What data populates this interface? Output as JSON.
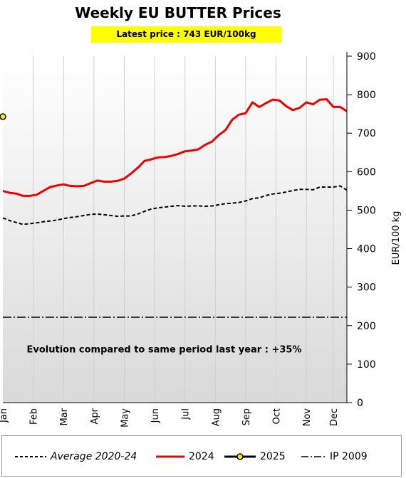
{
  "header": {
    "title": "Weekly EU BUTTER Prices",
    "latest_price": "Latest price : 743 EUR/100kg"
  },
  "annotation": "Evolution compared to same period last year : +35%",
  "colors": {
    "average": "#000000",
    "y2024": "#ee0000",
    "y2025_line": "#000000",
    "y2025_marker": "#ffee00",
    "ip": "#000000",
    "highlight": "#ffff00"
  },
  "chart_data": {
    "type": "line",
    "title": "Weekly EU BUTTER Prices",
    "ylabel": "EUR/100 kg",
    "xlabel": "",
    "ylim": [
      0,
      900
    ],
    "yticks": [
      0,
      100,
      200,
      300,
      400,
      500,
      600,
      700,
      800,
      900
    ],
    "xlim": [
      1,
      52
    ],
    "months": [
      {
        "label": "Jan",
        "week": 1
      },
      {
        "label": "Feb",
        "week": 5.5
      },
      {
        "label": "Mar",
        "week": 10
      },
      {
        "label": "Apr",
        "week": 14.5
      },
      {
        "label": "May",
        "week": 19
      },
      {
        "label": "Jun",
        "week": 23.5
      },
      {
        "label": "Jul",
        "week": 28
      },
      {
        "label": "Aug",
        "week": 32.5
      },
      {
        "label": "Sep",
        "week": 37
      },
      {
        "label": "Oct",
        "week": 41.5
      },
      {
        "label": "Nov",
        "week": 46
      },
      {
        "label": "Dec",
        "week": 50
      }
    ],
    "grid": "vertical",
    "legend_position": "bottom",
    "series": [
      {
        "name": "Average 2020-24",
        "style": "dashed",
        "x": [
          1,
          2,
          3,
          4,
          5,
          6,
          7,
          8,
          9,
          10,
          11,
          12,
          13,
          14,
          15,
          16,
          17,
          18,
          19,
          20,
          21,
          22,
          23,
          24,
          25,
          26,
          27,
          28,
          29,
          30,
          31,
          32,
          33,
          34,
          35,
          36,
          37,
          38,
          39,
          40,
          41,
          42,
          43,
          44,
          45,
          46,
          47,
          48,
          49,
          50,
          51,
          52
        ],
        "values": [
          480,
          473,
          468,
          463,
          465,
          467,
          470,
          472,
          474,
          478,
          481,
          483,
          486,
          489,
          490,
          488,
          486,
          484,
          485,
          485,
          490,
          497,
          503,
          506,
          508,
          510,
          512,
          510,
          511,
          511,
          510,
          511,
          514,
          517,
          518,
          520,
          524,
          530,
          532,
          538,
          542,
          544,
          547,
          551,
          554,
          554,
          553,
          560,
          560,
          560,
          563,
          552
        ]
      },
      {
        "name": "2024",
        "style": "solid",
        "x": [
          1,
          2,
          3,
          4,
          5,
          6,
          7,
          8,
          9,
          10,
          11,
          12,
          13,
          14,
          15,
          16,
          17,
          18,
          19,
          20,
          21,
          22,
          23,
          24,
          25,
          26,
          27,
          28,
          29,
          30,
          31,
          32,
          33,
          34,
          35,
          36,
          37,
          38,
          39,
          40,
          41,
          42,
          43,
          44,
          45,
          46,
          47,
          48,
          49,
          50,
          51,
          52
        ],
        "values": [
          550,
          545,
          543,
          537,
          537,
          540,
          550,
          560,
          564,
          567,
          563,
          562,
          563,
          570,
          577,
          574,
          574,
          576,
          582,
          595,
          610,
          628,
          632,
          637,
          638,
          641,
          646,
          653,
          655,
          658,
          670,
          678,
          695,
          708,
          735,
          748,
          752,
          780,
          768,
          778,
          787,
          785,
          770,
          760,
          766,
          780,
          775,
          787,
          788,
          768,
          768,
          757
        ]
      },
      {
        "name": "2025",
        "style": "solid-marker",
        "x": [
          1
        ],
        "values": [
          743
        ]
      },
      {
        "name": "IP 2009",
        "style": "dashdot",
        "x": [
          1,
          52
        ],
        "values": [
          221.75,
          221.75
        ]
      }
    ]
  },
  "legend": {
    "average_label": "Average 2020-24",
    "y2024_label": "2024",
    "y2025_label": "2025",
    "ip_label": "IP 2009"
  }
}
